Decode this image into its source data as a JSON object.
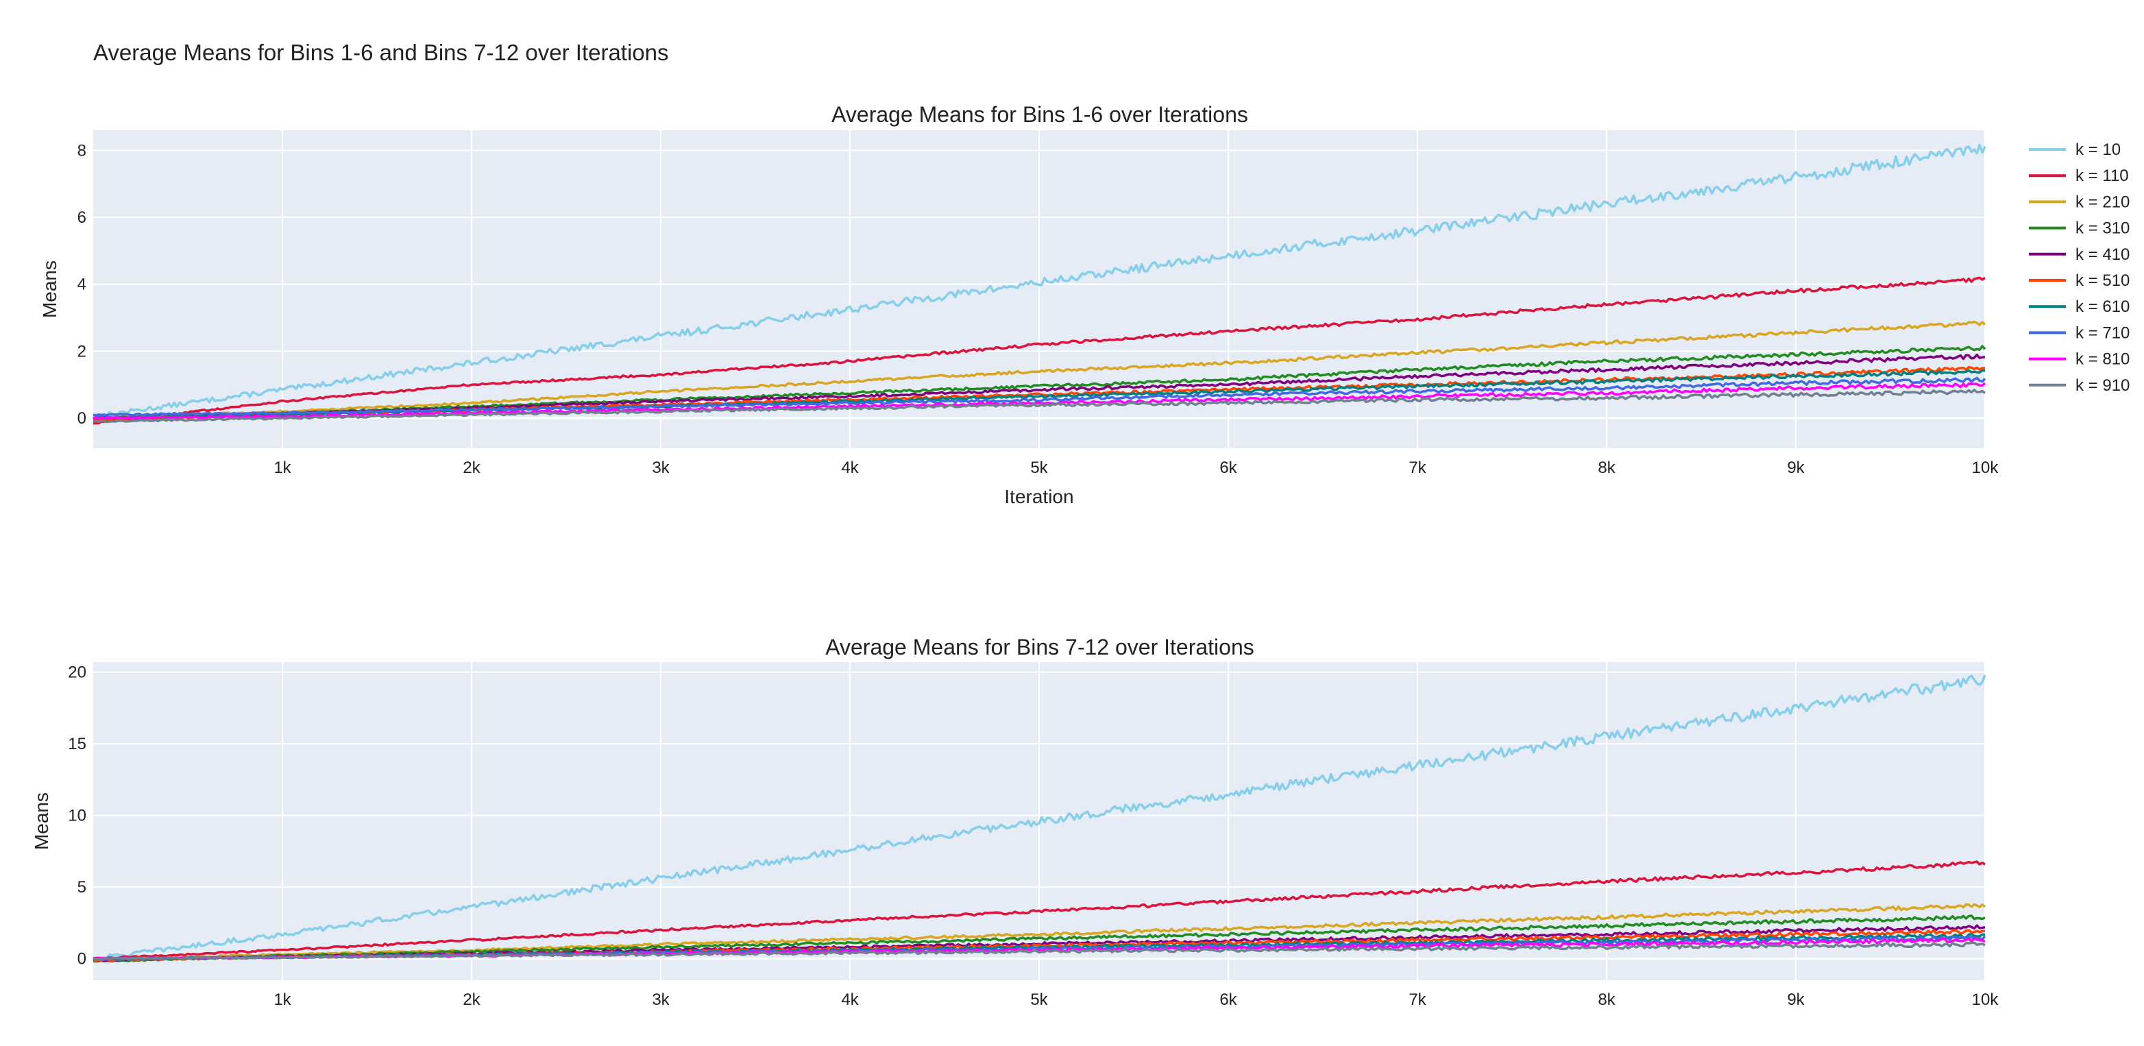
{
  "figure_title": "Average Means for Bins 1-6 and Bins 7-12 over Iterations",
  "colors": {
    "plot_bg": "#E5ECF6",
    "grid": "#FFFFFF",
    "text": "#222222"
  },
  "legend": {
    "position": "right",
    "entries": [
      "k = 10",
      "k = 110",
      "k = 210",
      "k = 310",
      "k = 410",
      "k = 510",
      "k = 610",
      "k = 710",
      "k = 810",
      "k = 910"
    ]
  },
  "chart_data": [
    {
      "type": "line",
      "title": "Average Means for Bins 1-6 over Iterations",
      "xlabel": "Iteration",
      "ylabel": "Means",
      "xlim": [
        0,
        10000
      ],
      "ylim": [
        -0.9,
        8.6
      ],
      "x_ticks": [
        1000,
        2000,
        3000,
        4000,
        5000,
        6000,
        7000,
        8000,
        9000,
        10000
      ],
      "x_tick_labels": [
        "1k",
        "2k",
        "3k",
        "4k",
        "5k",
        "6k",
        "7k",
        "8k",
        "9k",
        "10k"
      ],
      "y_ticks": [
        0,
        2,
        4,
        6,
        8
      ],
      "y_tick_labels": [
        "0",
        "2",
        "4",
        "6",
        "8"
      ],
      "grid": true,
      "x": [
        0,
        1000,
        2000,
        3000,
        4000,
        5000,
        6000,
        7000,
        8000,
        9000,
        10000
      ],
      "series": [
        {
          "name": "k = 10",
          "color": "#87CEEB",
          "values": [
            0.05,
            0.85,
            1.65,
            2.45,
            3.25,
            4.05,
            4.85,
            5.6,
            6.4,
            7.2,
            8.05
          ]
        },
        {
          "name": "k = 110",
          "color": "#DC143C",
          "values": [
            -0.15,
            0.5,
            1.0,
            1.3,
            1.7,
            2.2,
            2.6,
            2.95,
            3.4,
            3.8,
            4.15
          ]
        },
        {
          "name": "k = 210",
          "color": "#DAA520",
          "values": [
            0.0,
            0.2,
            0.45,
            0.8,
            1.1,
            1.4,
            1.65,
            1.95,
            2.25,
            2.55,
            2.85
          ]
        },
        {
          "name": "k = 310",
          "color": "#228B22",
          "values": [
            0.0,
            0.15,
            0.35,
            0.55,
            0.75,
            0.95,
            1.15,
            1.45,
            1.7,
            1.9,
            2.1
          ]
        },
        {
          "name": "k = 410",
          "color": "#800080",
          "values": [
            -0.05,
            0.15,
            0.3,
            0.5,
            0.65,
            0.85,
            1.0,
            1.25,
            1.45,
            1.65,
            1.85
          ]
        },
        {
          "name": "k = 510",
          "color": "#FF4500",
          "values": [
            -0.05,
            0.1,
            0.25,
            0.4,
            0.55,
            0.7,
            0.85,
            1.0,
            1.15,
            1.3,
            1.5
          ]
        },
        {
          "name": "k = 610",
          "color": "#008080",
          "values": [
            0.0,
            0.1,
            0.25,
            0.35,
            0.5,
            0.65,
            0.8,
            0.95,
            1.1,
            1.25,
            1.4
          ]
        },
        {
          "name": "k = 710",
          "color": "#4169E1",
          "values": [
            0.1,
            0.15,
            0.25,
            0.35,
            0.45,
            0.55,
            0.7,
            0.8,
            0.9,
            1.05,
            1.15
          ]
        },
        {
          "name": "k = 810",
          "color": "#FF00FF",
          "values": [
            0.0,
            0.05,
            0.15,
            0.25,
            0.35,
            0.45,
            0.55,
            0.65,
            0.75,
            0.9,
            1.0
          ]
        },
        {
          "name": "k = 910",
          "color": "#708090",
          "values": [
            -0.1,
            0.0,
            0.1,
            0.2,
            0.3,
            0.4,
            0.45,
            0.55,
            0.6,
            0.7,
            0.8
          ]
        }
      ]
    },
    {
      "type": "line",
      "title": "Average Means for Bins 7-12 over Iterations",
      "xlabel": "",
      "ylabel": "Means",
      "xlim": [
        0,
        10000
      ],
      "ylim": [
        -1.5,
        20.7
      ],
      "x_ticks": [
        1000,
        2000,
        3000,
        4000,
        5000,
        6000,
        7000,
        8000,
        9000,
        10000
      ],
      "x_tick_labels": [
        "1k",
        "2k",
        "3k",
        "4k",
        "5k",
        "6k",
        "7k",
        "8k",
        "9k",
        "10k"
      ],
      "y_ticks": [
        0,
        5,
        10,
        15,
        20
      ],
      "y_tick_labels": [
        "0",
        "5",
        "10",
        "15",
        "20"
      ],
      "grid": true,
      "x": [
        0,
        1000,
        2000,
        3000,
        4000,
        5000,
        6000,
        7000,
        8000,
        9000,
        10000
      ],
      "series": [
        {
          "name": "k = 10",
          "color": "#87CEEB",
          "values": [
            0.0,
            1.7,
            3.6,
            5.6,
            7.6,
            9.6,
            11.5,
            13.5,
            15.5,
            17.5,
            19.5
          ]
        },
        {
          "name": "k = 110",
          "color": "#DC143C",
          "values": [
            0.0,
            0.6,
            1.3,
            2.0,
            2.7,
            3.3,
            4.0,
            4.7,
            5.4,
            6.0,
            6.7
          ]
        },
        {
          "name": "k = 210",
          "color": "#DAA520",
          "values": [
            -0.1,
            0.3,
            0.6,
            1.0,
            1.35,
            1.7,
            2.1,
            2.5,
            2.9,
            3.3,
            3.7
          ]
        },
        {
          "name": "k = 310",
          "color": "#228B22",
          "values": [
            -0.2,
            0.2,
            0.5,
            0.8,
            1.1,
            1.4,
            1.7,
            2.0,
            2.3,
            2.6,
            2.9
          ]
        },
        {
          "name": "k = 410",
          "color": "#800080",
          "values": [
            -0.1,
            0.15,
            0.35,
            0.6,
            0.8,
            1.05,
            1.25,
            1.5,
            1.7,
            1.95,
            2.2
          ]
        },
        {
          "name": "k = 510",
          "color": "#FF4500",
          "values": [
            -0.1,
            0.1,
            0.3,
            0.5,
            0.7,
            0.9,
            1.1,
            1.3,
            1.5,
            1.7,
            1.9
          ]
        },
        {
          "name": "k = 610",
          "color": "#008080",
          "values": [
            -0.05,
            0.1,
            0.3,
            0.45,
            0.6,
            0.8,
            0.95,
            1.1,
            1.3,
            1.45,
            1.6
          ]
        },
        {
          "name": "k = 710",
          "color": "#4169E1",
          "values": [
            0.0,
            0.1,
            0.25,
            0.4,
            0.55,
            0.7,
            0.85,
            1.0,
            1.15,
            1.3,
            1.45
          ]
        },
        {
          "name": "k = 810",
          "color": "#FF00FF",
          "values": [
            0.0,
            0.1,
            0.2,
            0.35,
            0.5,
            0.6,
            0.75,
            0.9,
            1.0,
            1.15,
            1.3
          ]
        },
        {
          "name": "k = 910",
          "color": "#708090",
          "values": [
            0.0,
            0.1,
            0.2,
            0.3,
            0.4,
            0.5,
            0.6,
            0.7,
            0.8,
            0.9,
            1.0
          ]
        }
      ]
    }
  ]
}
